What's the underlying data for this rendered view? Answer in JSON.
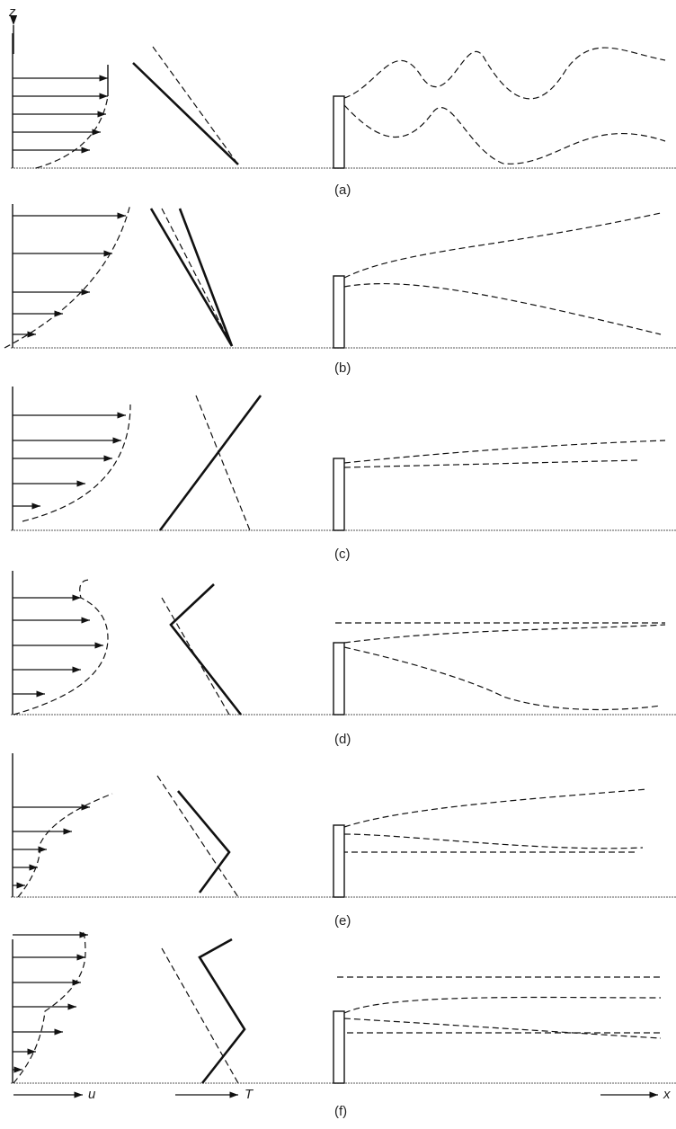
{
  "axis_labels": {
    "z": "z",
    "u": "u",
    "T": "T",
    "x": "x"
  },
  "panels": [
    {
      "label": "(a)"
    },
    {
      "label": "(b)"
    },
    {
      "label": "(c)"
    },
    {
      "label": "(d)"
    },
    {
      "label": "(e)"
    },
    {
      "label": "(f)"
    }
  ]
}
